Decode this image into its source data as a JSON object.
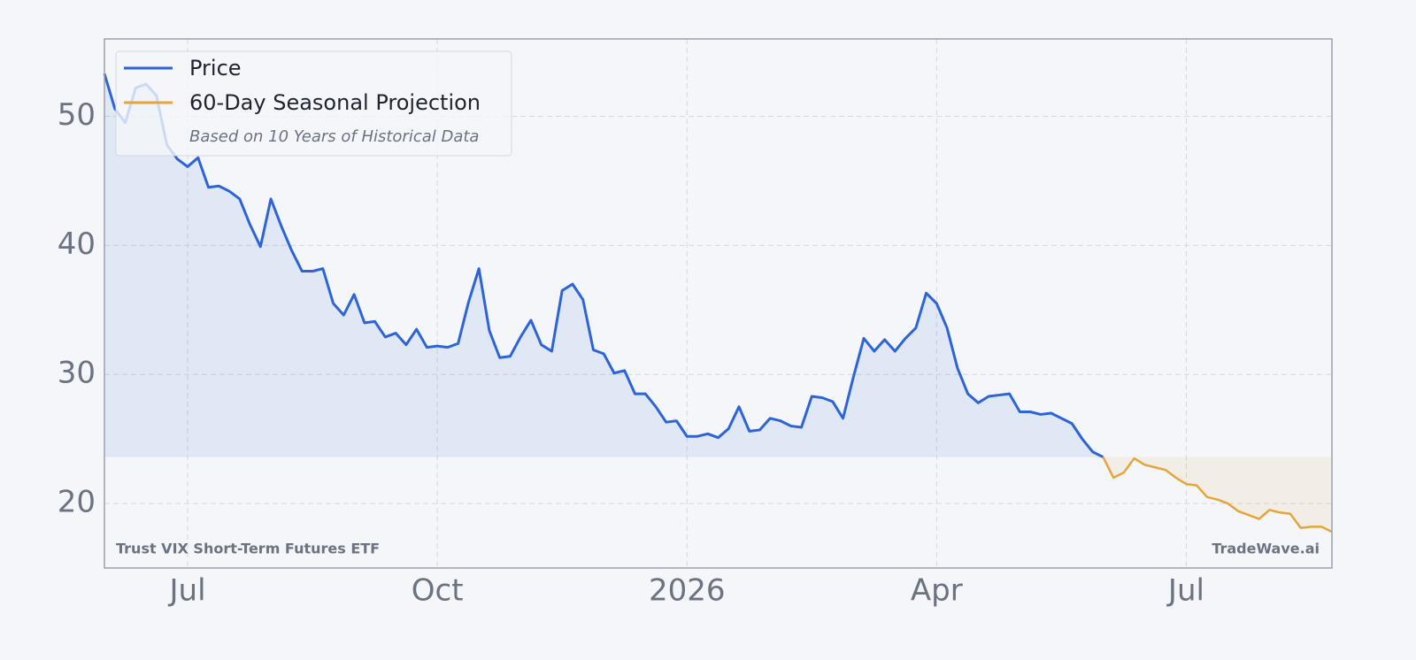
{
  "chart_data": {
    "type": "line",
    "legend_note": "Based on 10 Years of Historical Data",
    "source_label": "Trust VIX Short-Term Futures ETF",
    "watermark": "TradeWave.ai",
    "categories": [
      null,
      null,
      null,
      null,
      null,
      null,
      null,
      null,
      "Jul",
      null,
      null,
      null,
      null,
      null,
      null,
      null,
      null,
      null,
      null,
      null,
      null,
      null,
      null,
      null,
      null,
      null,
      null,
      null,
      null,
      null,
      null,
      null,
      "Oct",
      null,
      null,
      null,
      null,
      null,
      null,
      null,
      null,
      null,
      null,
      null,
      null,
      null,
      null,
      null,
      null,
      null,
      null,
      null,
      null,
      null,
      null,
      null,
      "2026",
      null,
      null,
      null,
      null,
      null,
      null,
      null,
      null,
      null,
      null,
      null,
      null,
      null,
      null,
      null,
      null,
      null,
      null,
      null,
      null,
      null,
      null,
      null,
      "Apr",
      null,
      null,
      null,
      null,
      null,
      null,
      null,
      null,
      null,
      null,
      null,
      null,
      null,
      null,
      null,
      null,
      null,
      null,
      null,
      null,
      null,
      null,
      null,
      "Jul",
      null,
      null,
      null,
      null,
      null,
      null,
      null,
      null,
      null,
      null,
      null,
      null,
      null,
      null
    ],
    "series": [
      {
        "name": "Price",
        "color": "#2d64d8",
        "values": [
          53.3,
          50.6,
          49.5,
          52.2,
          52.5,
          51.6,
          47.8,
          46.7,
          46.1,
          46.8,
          44.5,
          44.6,
          44.2,
          43.6,
          41.6,
          39.9,
          43.6,
          41.5,
          39.6,
          38.0,
          38.0,
          38.2,
          35.5,
          34.6,
          36.2,
          34.0,
          34.1,
          32.9,
          33.2,
          32.3,
          33.5,
          32.1,
          32.2,
          32.1,
          32.4,
          35.6,
          38.2,
          33.4,
          31.3,
          31.4,
          32.9,
          34.2,
          32.3,
          31.8,
          36.5,
          37.0,
          35.8,
          31.9,
          31.6,
          30.1,
          30.3,
          28.5,
          28.5,
          27.5,
          26.3,
          26.4,
          25.2,
          25.2,
          25.4,
          25.1,
          25.8,
          27.5,
          25.6,
          25.7,
          26.6,
          26.4,
          26.0,
          25.9,
          28.3,
          28.2,
          27.9,
          26.6,
          29.8,
          32.8,
          31.8,
          32.7,
          31.8,
          32.8,
          33.6,
          36.3,
          35.5,
          33.6,
          30.5,
          28.5,
          27.8,
          28.3,
          28.4,
          28.5,
          27.1,
          27.1,
          26.9,
          27.0,
          26.6,
          26.2,
          25.0,
          24.0,
          23.6,
          null,
          null,
          null,
          null,
          null,
          null,
          null,
          null,
          null,
          null,
          null,
          null,
          null,
          null,
          null,
          null,
          null,
          null,
          null,
          null,
          null,
          null
        ]
      },
      {
        "name": "60-Day Seasonal Projection",
        "color": "#e5a53a",
        "values": [
          null,
          null,
          null,
          null,
          null,
          null,
          null,
          null,
          null,
          null,
          null,
          null,
          null,
          null,
          null,
          null,
          null,
          null,
          null,
          null,
          null,
          null,
          null,
          null,
          null,
          null,
          null,
          null,
          null,
          null,
          null,
          null,
          null,
          null,
          null,
          null,
          null,
          null,
          null,
          null,
          null,
          null,
          null,
          null,
          null,
          null,
          null,
          null,
          null,
          null,
          null,
          null,
          null,
          null,
          null,
          null,
          null,
          null,
          null,
          null,
          null,
          null,
          null,
          null,
          null,
          null,
          null,
          null,
          null,
          null,
          null,
          null,
          null,
          null,
          null,
          null,
          null,
          null,
          null,
          null,
          null,
          null,
          null,
          null,
          null,
          null,
          null,
          null,
          null,
          null,
          null,
          null,
          null,
          null,
          null,
          null,
          23.6,
          22.0,
          22.4,
          23.5,
          23.0,
          22.8,
          22.6,
          22.0,
          21.5,
          21.4,
          20.5,
          20.3,
          20.0,
          19.4,
          19.1,
          18.8,
          19.5,
          19.3,
          19.2,
          18.1,
          18.2,
          18.2,
          17.8
        ]
      }
    ],
    "ylim": [
      15,
      56
    ],
    "yticks": [
      20,
      30,
      40,
      50
    ],
    "grid": true,
    "legend": "upper left"
  }
}
